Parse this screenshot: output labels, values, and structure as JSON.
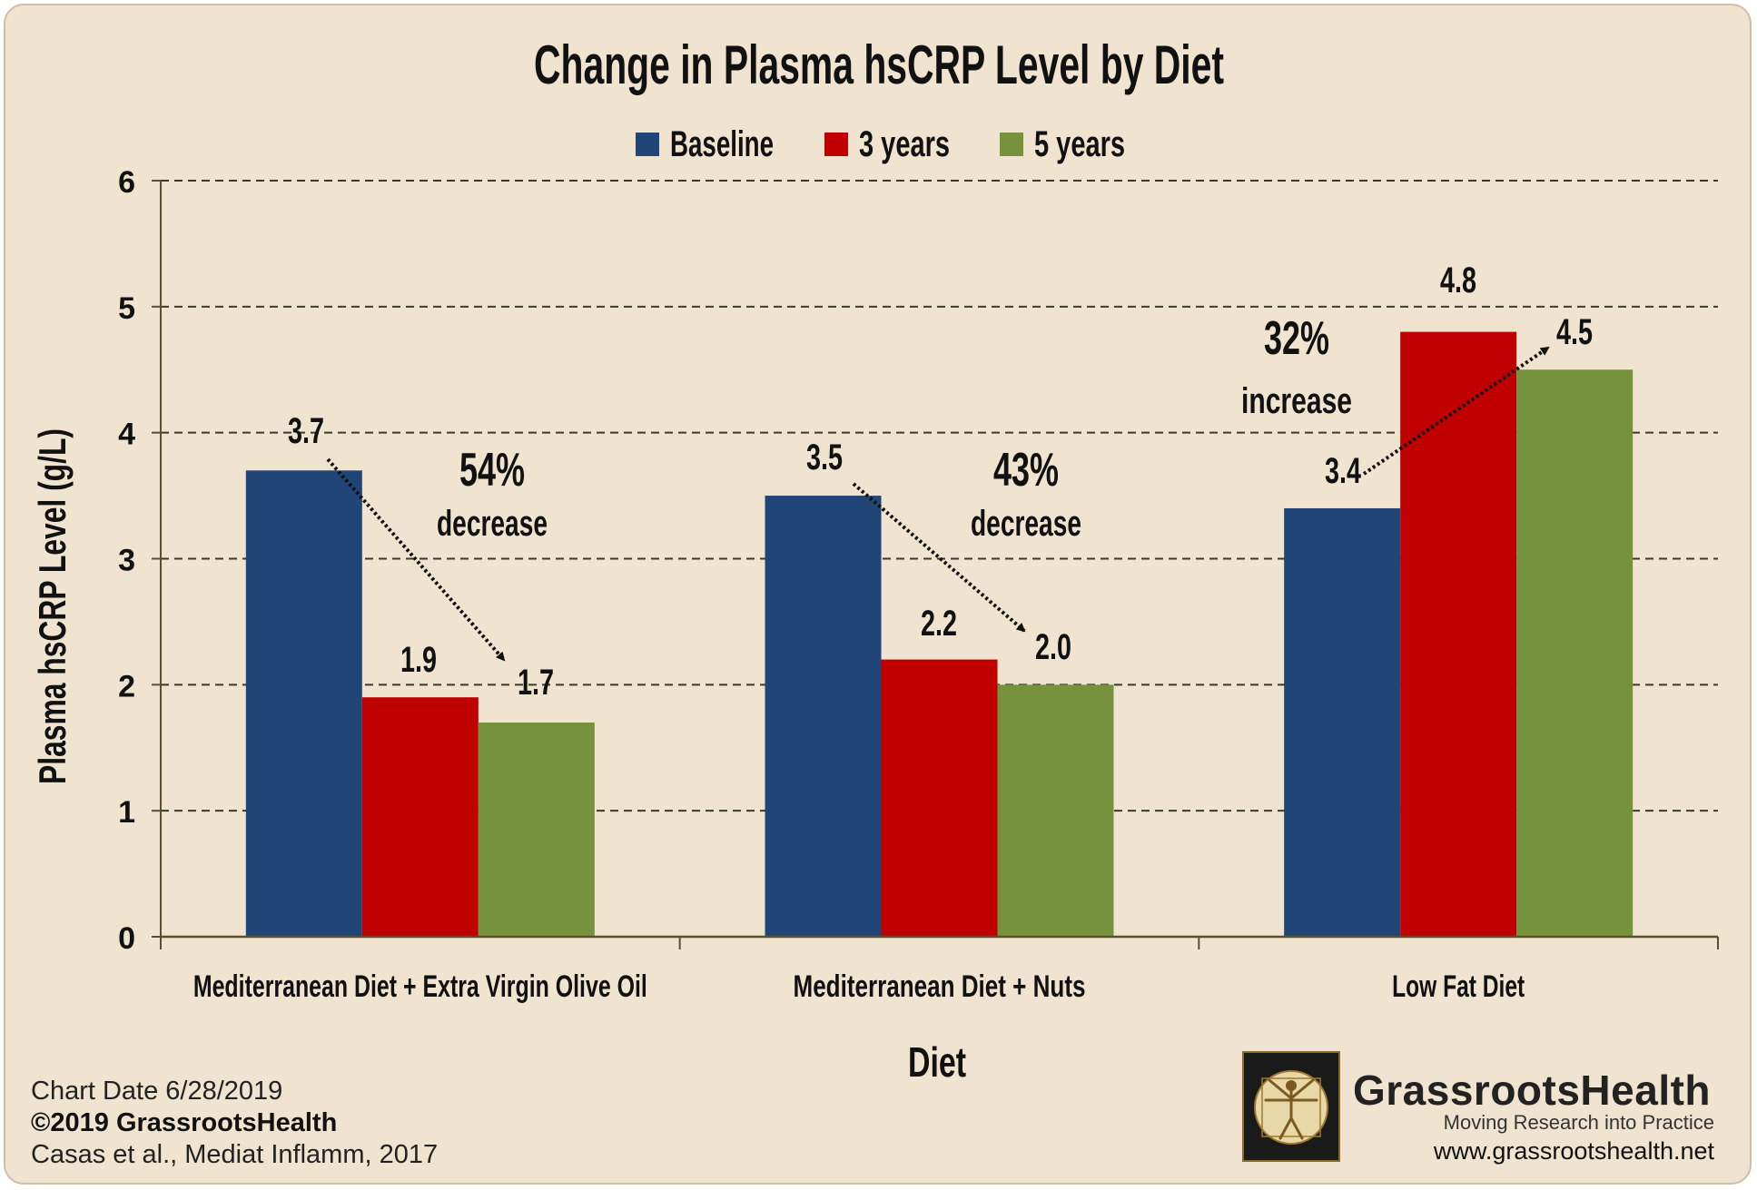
{
  "chart_data": {
    "type": "bar",
    "title": "Change in Plasma hsCRP Level by Diet",
    "xlabel": "Diet",
    "ylabel": "Plasma hsCRP Level (g/L)",
    "ylim": [
      0,
      6
    ],
    "yticks": [
      0,
      1,
      2,
      3,
      4,
      5,
      6
    ],
    "grid": "horizontal dashed",
    "legend_position": "top",
    "categories": [
      "Mediterranean Diet + Extra Virgin Olive Oil",
      "Mediterranean Diet + Nuts",
      "Low Fat Diet"
    ],
    "series": [
      {
        "name": "Baseline",
        "color": "#1f4677",
        "values": [
          3.7,
          3.5,
          3.4
        ],
        "labels": [
          "3.7",
          "3.5",
          "3.4"
        ]
      },
      {
        "name": "3 years",
        "color": "#c00000",
        "values": [
          1.9,
          2.2,
          4.8
        ],
        "labels": [
          "1.9",
          "2.2",
          "4.8"
        ]
      },
      {
        "name": "5 years",
        "color": "#76923c",
        "values": [
          1.7,
          2.0,
          4.5
        ],
        "labels": [
          "1.7",
          "2.0",
          "4.5"
        ]
      }
    ],
    "annotations": [
      {
        "category": 0,
        "percent": "54%",
        "text": "decrease"
      },
      {
        "category": 1,
        "percent": "43%",
        "text": "decrease"
      },
      {
        "category": 2,
        "percent": "32%",
        "text": "increase"
      }
    ]
  },
  "footer": {
    "chart_date": "Chart Date 6/28/2019",
    "copyright": "©2019 GrassrootsHealth",
    "citation": "Casas et al., Mediat Inflamm, 2017"
  },
  "brand": {
    "name": "GrassrootsHealth",
    "tagline": "Moving Research into Practice",
    "url": "www.grassrootshealth.net"
  }
}
